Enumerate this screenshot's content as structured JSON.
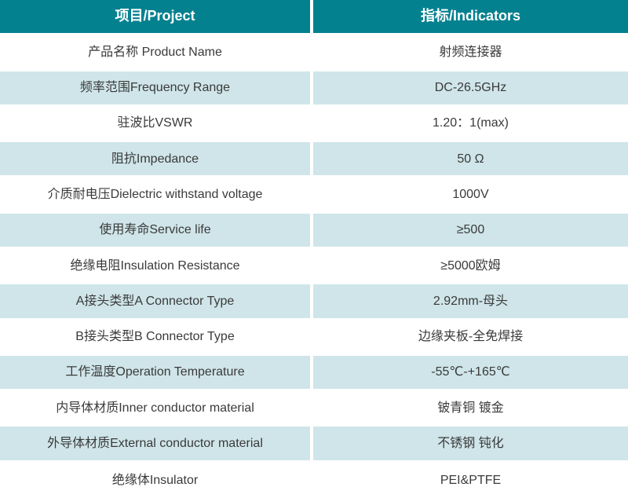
{
  "table": {
    "header": {
      "project": "项目/Project",
      "indicators": "指标/Indicators"
    },
    "rows": [
      {
        "project": "产品名称 Product Name",
        "indicator": "射频连接器"
      },
      {
        "project": "频率范围Frequency Range",
        "indicator": "DC-26.5GHz"
      },
      {
        "project": "驻波比VSWR",
        "indicator": "1.20：1(max)"
      },
      {
        "project": "阻抗Impedance",
        "indicator": "50 Ω"
      },
      {
        "project": "介质耐电压Dielectric withstand voltage",
        "indicator": "1000V"
      },
      {
        "project": "使用寿命Service life",
        "indicator": "≥500"
      },
      {
        "project": "绝缘电阻Insulation Resistance",
        "indicator": "≥5000欧姆"
      },
      {
        "project": "A接头类型A Connector Type",
        "indicator": "2.92mm-母头"
      },
      {
        "project": "B接头类型B Connector Type",
        "indicator": "边缘夹板-全免焊接"
      },
      {
        "project": "工作温度Operation Temperature",
        "indicator": "-55℃-+165℃"
      },
      {
        "project": "内导体材质Inner conductor material",
        "indicator": "铍青铜 镀金"
      },
      {
        "project": "外导体材质External conductor material",
        "indicator": "不锈钢 钝化"
      },
      {
        "project": "绝缘体Insulator",
        "indicator": "PEI&PTFE"
      }
    ],
    "colors": {
      "header_bg": "#04818F",
      "row_alt_bg": "#CFE5E9",
      "row_bg": "#FFFFFF",
      "header_text": "#FFFFFF",
      "body_text": "#3A3A3A"
    }
  }
}
